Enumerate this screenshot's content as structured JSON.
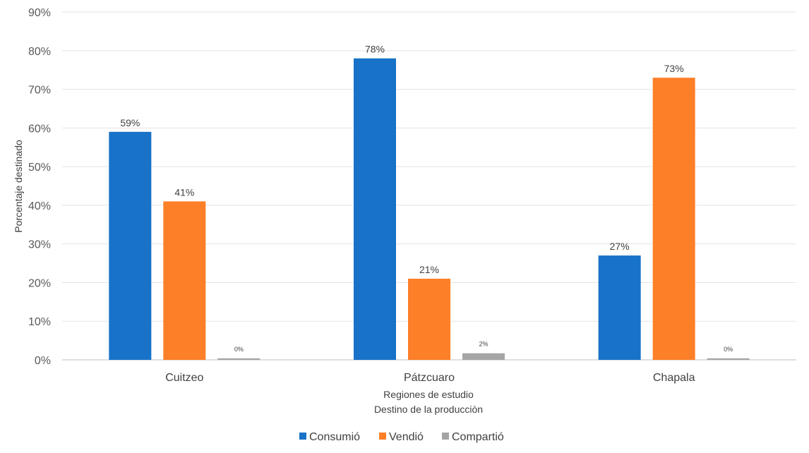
{
  "chart_data": {
    "type": "bar",
    "categories": [
      "Cuitzeo",
      "Pátzcuaro",
      "Chapala"
    ],
    "series": [
      {
        "name": "Consumió",
        "color": "#1872C8",
        "values": [
          59,
          78,
          27
        ],
        "labels": [
          "59%",
          "78%",
          "27%"
        ]
      },
      {
        "name": "Vendió",
        "color": "#FD7F28",
        "values": [
          41,
          21,
          73
        ],
        "labels": [
          "41%",
          "21%",
          "73%"
        ]
      },
      {
        "name": "Compartió",
        "color": "#A5A5A5",
        "values": [
          0.4,
          1.7,
          0.4
        ],
        "labels": [
          "0%",
          "2%",
          "0%"
        ]
      }
    ],
    "ylim": [
      0,
      90
    ],
    "yticks": [
      "0%",
      "10%",
      "20%",
      "30%",
      "40%",
      "50%",
      "60%",
      "70%",
      "80%",
      "90%"
    ],
    "ylabel": "Porcentaje destinado",
    "xlabel": "Regiones de estudio",
    "xlabel2": "Destino de la producciòn",
    "legend_position": "bottom",
    "grid": true
  }
}
